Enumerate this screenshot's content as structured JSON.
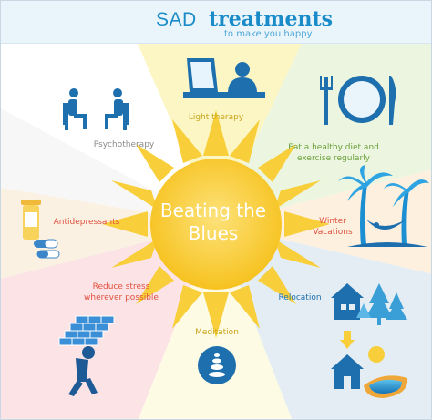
{
  "header": {
    "title_plain": "SAD",
    "title_bold": "treatments",
    "subtitle": "to make you happy!"
  },
  "center": {
    "line1": "Beating the",
    "line2": "Blues"
  },
  "treatments": {
    "light_therapy": "Light therapy",
    "psychotherapy": "Psychotherapy",
    "diet_line1": "Eat a healthy diet and",
    "diet_line2": "exercise regularly",
    "antidepressants": "Antidepressants",
    "winter_line1": "Winter",
    "winter_line2": "Vacations",
    "stress_line1": "Reduce stress",
    "stress_line2": "wherever possible",
    "meditation": "Meditation",
    "relocation": "Relocation"
  },
  "colors": {
    "accent": "#1a8bc9",
    "sun": "#f8cf3a",
    "icon_blue": "#1e6fae",
    "label_red": "#e0513f",
    "label_green": "#7db03b",
    "label_yellow": "#c9a51b"
  }
}
